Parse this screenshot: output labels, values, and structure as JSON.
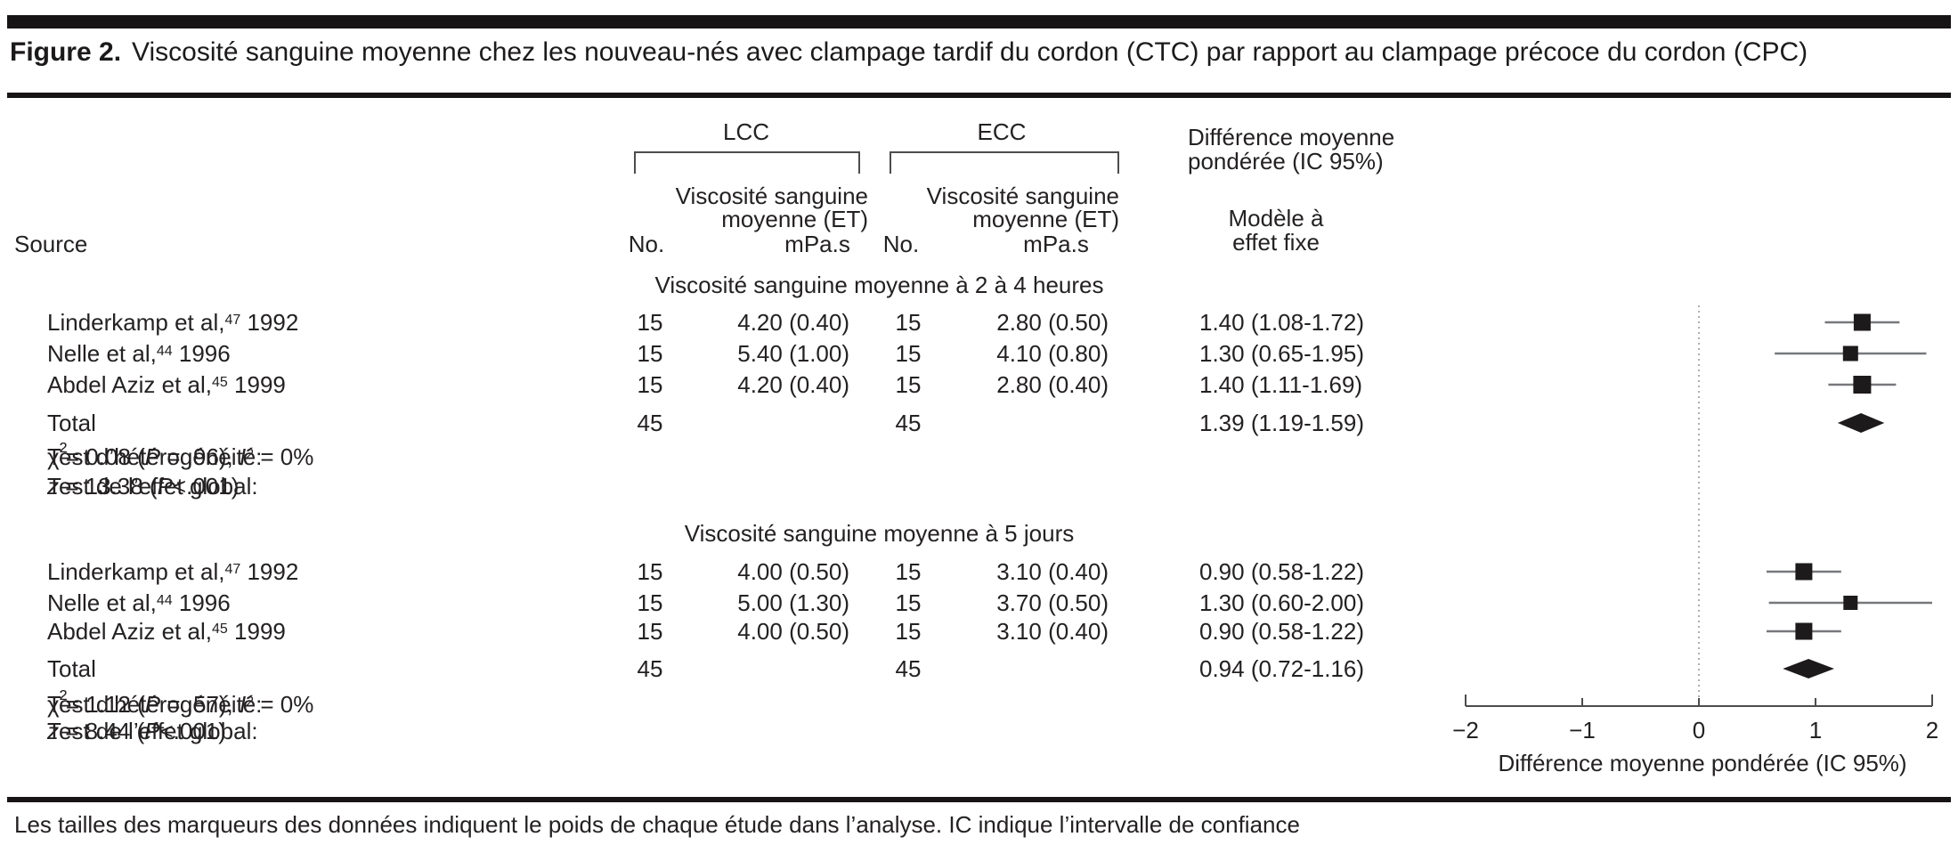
{
  "figure": {
    "label": "Figure 2.",
    "title": "Viscosité sanguine moyenne chez les nouveau-nés avec clampage tardif du cordon (CTC) par rapport au clampage précoce du cordon (CPC)",
    "footnote": "Les tailles des marqueurs des données indiquent le poids de chaque étude dans l’analyse. IC indique l’intervalle de confiance"
  },
  "table": {
    "headers": {
      "source": "Source",
      "lcc": "LCC",
      "ecc": "ECC",
      "wmd_line1": "Différence moyenne",
      "wmd_line2": "pondérée (IC 95%)",
      "visc_line1": "Viscosité sanguine",
      "visc_line2": "moyenne (ET)",
      "no": "No.",
      "unit": "mPa.s",
      "model_line1": "Modèle à",
      "model_line2": "effet fixe"
    },
    "sections": [
      {
        "title": "Viscosité sanguine moyenne à 2 à 4 heures",
        "rows": [
          {
            "source": "Linderkamp et al,",
            "ref": "47",
            "year": "1992",
            "lcc_no": "15",
            "lcc": "4.20 (0.40)",
            "ecc_no": "15",
            "ecc": "2.80 (0.50)",
            "wmd": "1.40 (1.08-1.72)"
          },
          {
            "source": "Nelle et al,",
            "ref": "44",
            "year": "1996",
            "lcc_no": "15",
            "lcc": "5.40 (1.00)",
            "ecc_no": "15",
            "ecc": "4.10 (0.80)",
            "wmd": "1.30 (0.65-1.95)"
          },
          {
            "source": "Abdel Aziz et al,",
            "ref": "45",
            "year": "1999",
            "lcc_no": "15",
            "lcc": "4.20 (0.40)",
            "ecc_no": "15",
            "ecc": "2.80 (0.40)",
            "wmd": "1.40 (1.11-1.69)"
          }
        ],
        "total": {
          "label": "Total",
          "lcc_no": "45",
          "ecc_no": "45",
          "wmd": "1.39 (1.19-1.59)"
        },
        "heterogeneity": {
          "label": "Test d’hétérogénéité:",
          "chi2": "0.08",
          "p": " = .96",
          "i2": "0%"
        },
        "overall": {
          "label": "Test de l’effet global:",
          "z": "13.38",
          "p": "<.001"
        }
      },
      {
        "title": "Viscosité sanguine moyenne à 5 jours",
        "rows": [
          {
            "source": "Linderkamp et al,",
            "ref": "47",
            "year": "1992",
            "lcc_no": "15",
            "lcc": "4.00 (0.50)",
            "ecc_no": "15",
            "ecc": "3.10 (0.40)",
            "wmd": "0.90 (0.58-1.22)"
          },
          {
            "source": "Nelle et al,",
            "ref": "44",
            "year": "1996",
            "lcc_no": "15",
            "lcc": "5.00 (1.30)",
            "ecc_no": "15",
            "ecc": "3.70 (0.50)",
            "wmd": "1.30 (0.60-2.00)"
          },
          {
            "source": "Abdel Aziz et al,",
            "ref": "45",
            "year": "1999",
            "lcc_no": "15",
            "lcc": "4.00 (0.50)",
            "ecc_no": "15",
            "ecc": "3.10 (0.40)",
            "wmd": "0.90 (0.58-1.22)"
          }
        ],
        "total": {
          "label": "Total",
          "lcc_no": "45",
          "ecc_no": "45",
          "wmd": "0.94 (0.72-1.16)"
        },
        "heterogeneity": {
          "label": "Test d’hétérogénéité:",
          "chi2": "1.12",
          "p": " = .57",
          "i2": "0%"
        },
        "overall": {
          "label": "Test de l’effet global:",
          "z": "8.44",
          "p": "<.001"
        }
      }
    ]
  },
  "chart_data": {
    "type": "forest",
    "xlabel": "Différence moyenne pondérée (IC 95%)",
    "xlim": [
      -2,
      2
    ],
    "ticks": [
      -2,
      -1,
      0,
      1,
      2
    ],
    "tick_labels": [
      "−2",
      "−1",
      "0",
      "1",
      "2"
    ],
    "null_line": 0,
    "legend": "marker size proportional to study weight; diamond = fixed-effect pooled estimate",
    "groups": [
      {
        "label": "Viscosité sanguine moyenne à 2 à 4 heures",
        "studies": [
          {
            "name": "Linderkamp et al, 1992",
            "est": 1.4,
            "ci": [
              1.08,
              1.72
            ]
          },
          {
            "name": "Nelle et al, 1996",
            "est": 1.3,
            "ci": [
              0.65,
              1.95
            ]
          },
          {
            "name": "Abdel Aziz et al, 1999",
            "est": 1.4,
            "ci": [
              1.11,
              1.69
            ]
          }
        ],
        "total": {
          "name": "Total",
          "est": 1.39,
          "ci": [
            1.19,
            1.59
          ]
        }
      },
      {
        "label": "Viscosité sanguine moyenne à 5 jours",
        "studies": [
          {
            "name": "Linderkamp et al, 1992",
            "est": 0.9,
            "ci": [
              0.58,
              1.22
            ]
          },
          {
            "name": "Nelle et al, 1996",
            "est": 1.3,
            "ci": [
              0.6,
              2.0
            ]
          },
          {
            "name": "Abdel Aziz et al, 1999",
            "est": 0.9,
            "ci": [
              0.58,
              1.22
            ]
          }
        ],
        "total": {
          "name": "Total",
          "est": 0.94,
          "ci": [
            0.72,
            1.16
          ]
        }
      }
    ]
  }
}
